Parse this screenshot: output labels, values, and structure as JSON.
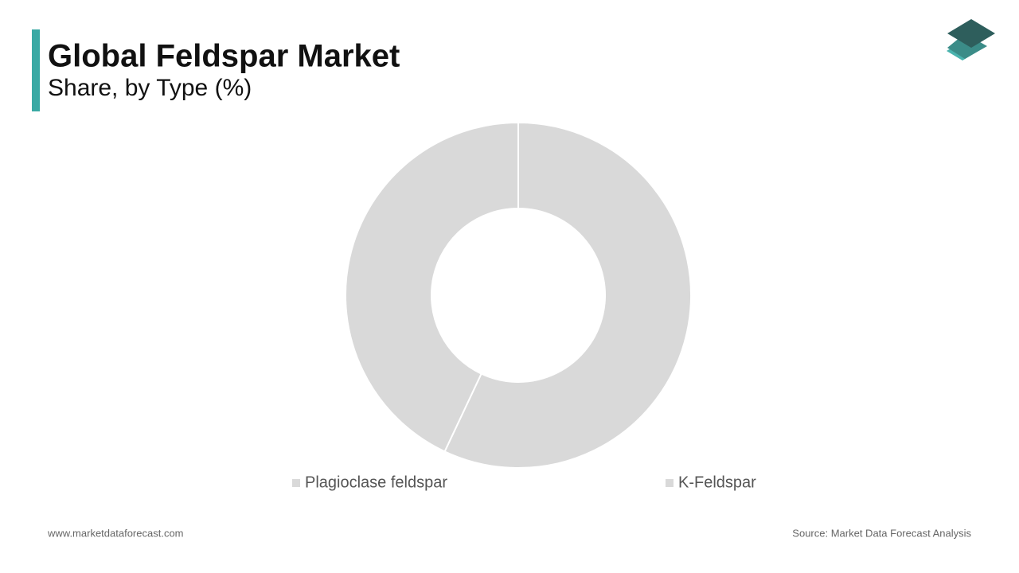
{
  "chart_data": {
    "type": "donut",
    "title": "Global Feldspar Market",
    "subtitle": "Share, by Type (%)",
    "categories": [
      "Plagioclase feldspar",
      "K-Feldspar"
    ],
    "values": [
      57,
      43
    ],
    "colors": [
      "#d9d9d9",
      "#d9d9d9"
    ]
  },
  "footer": {
    "website": "www.marketdataforecast.com",
    "source": "Source: Market Data Forecast Analysis"
  }
}
